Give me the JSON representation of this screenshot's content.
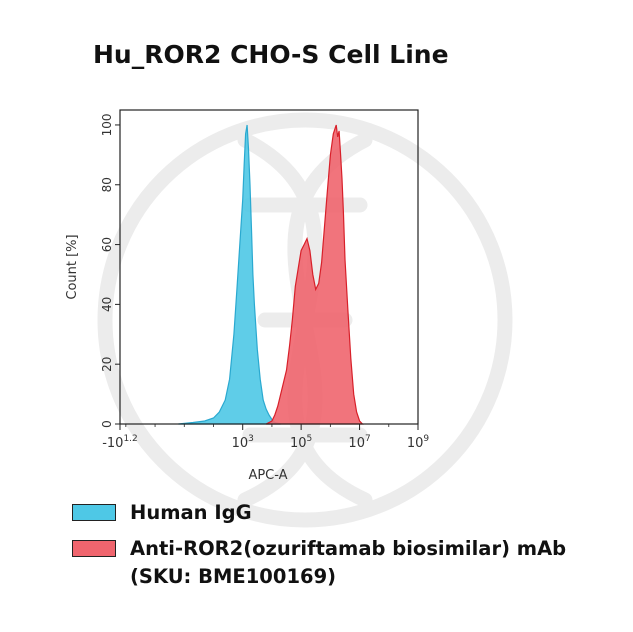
{
  "title": "Hu_ROR2 CHO-S Cell Line",
  "chart_data": {
    "type": "area",
    "xlabel": "APC-A",
    "ylabel": "Count [%]",
    "xscale": "log",
    "xlim": [
      -1.2,
      9
    ],
    "ylim": [
      0,
      105
    ],
    "yticks": [
      0,
      20,
      40,
      60,
      80,
      100
    ],
    "xticks": [
      {
        "label": "-10",
        "sup": "1.2",
        "value": -1.2
      },
      {
        "label": "10",
        "sup": "3",
        "value": 3
      },
      {
        "label": "10",
        "sup": "5",
        "value": 5
      },
      {
        "label": "10",
        "sup": "7",
        "value": 7
      },
      {
        "label": "10",
        "sup": "9",
        "value": 9
      }
    ],
    "grid": false,
    "legend_position": "bottom",
    "series": [
      {
        "name": "Human IgG",
        "color": "#4ec8e6",
        "x": [
          0.8,
          1.3,
          1.7,
          2.0,
          2.2,
          2.4,
          2.55,
          2.7,
          2.8,
          2.9,
          3.0,
          3.05,
          3.1,
          3.15,
          3.2,
          3.25,
          3.3,
          3.35,
          3.4,
          3.5,
          3.6,
          3.7,
          3.8,
          3.9,
          4.0,
          4.1,
          4.3
        ],
        "y": [
          0,
          0.5,
          1,
          2,
          4,
          8,
          15,
          30,
          45,
          60,
          75,
          87,
          97,
          100,
          92,
          80,
          65,
          50,
          40,
          25,
          15,
          8,
          5,
          3,
          1.5,
          0.5,
          0
        ]
      },
      {
        "name": "Anti-ROR2(ozuriftamab biosimilar) mAb (SKU: BME100169)",
        "color": "#f0656e",
        "x": [
          3.8,
          4.0,
          4.1,
          4.2,
          4.3,
          4.4,
          4.5,
          4.6,
          4.7,
          4.8,
          4.9,
          5.0,
          5.1,
          5.2,
          5.3,
          5.4,
          5.5,
          5.6,
          5.7,
          5.8,
          5.9,
          6.0,
          6.1,
          6.2,
          6.25,
          6.3,
          6.35,
          6.4,
          6.45,
          6.5,
          6.6,
          6.7,
          6.8,
          6.9,
          7.0,
          7.1
        ],
        "y": [
          0,
          1,
          3,
          6,
          10,
          14,
          18,
          26,
          35,
          46,
          52,
          58,
          60,
          62,
          58,
          50,
          45,
          47,
          54,
          66,
          78,
          90,
          97,
          100,
          96,
          98,
          90,
          82,
          70,
          55,
          38,
          22,
          10,
          4,
          1,
          0
        ]
      }
    ]
  },
  "legend": [
    {
      "label": "Human IgG",
      "color": "#4ec8e6"
    },
    {
      "label": "Anti-ROR2(ozuriftamab biosimilar) mAb (SKU: BME100169)",
      "color": "#f0656e"
    }
  ]
}
